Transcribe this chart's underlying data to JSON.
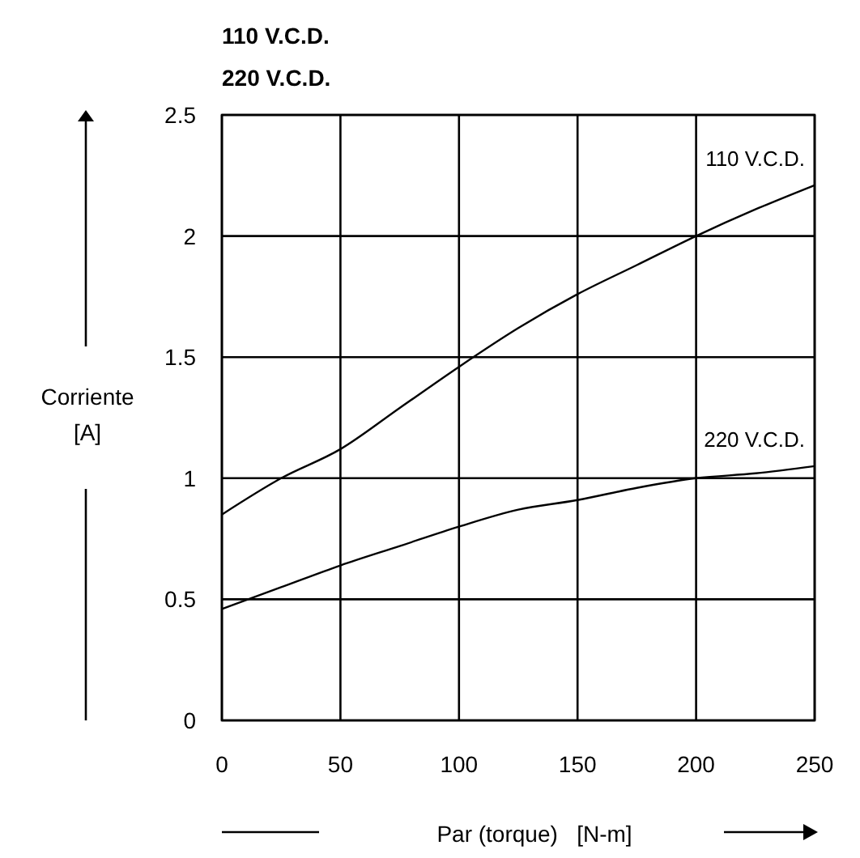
{
  "chart_data": {
    "type": "line",
    "title": "110 V.C.D.",
    "subtitle": "220 V.C.D.",
    "xlabel": "Par (torque)   [N-m]",
    "ylabel": "Corriente [A]",
    "x": [
      0,
      25,
      50,
      75,
      100,
      125,
      150,
      175,
      200,
      225,
      250
    ],
    "series": [
      {
        "name": "110 V.C.D.",
        "color": "#000000",
        "values": [
          0.85,
          1.0,
          1.12,
          1.29,
          1.46,
          1.62,
          1.76,
          1.88,
          2.0,
          2.11,
          2.21
        ]
      },
      {
        "name": "220 V.C.D.",
        "color": "#000000",
        "values": [
          0.46,
          0.55,
          0.64,
          0.72,
          0.8,
          0.87,
          0.91,
          0.96,
          1.0,
          1.02,
          1.05
        ]
      }
    ],
    "xlim": [
      0,
      250
    ],
    "xticks": [
      0,
      50,
      100,
      150,
      200,
      250
    ],
    "ylim": [
      0,
      2.5
    ],
    "yticks": [
      0,
      0.5,
      1,
      1.5,
      2,
      2.5
    ],
    "grid": true,
    "marker": "none",
    "line_style": "solid"
  }
}
